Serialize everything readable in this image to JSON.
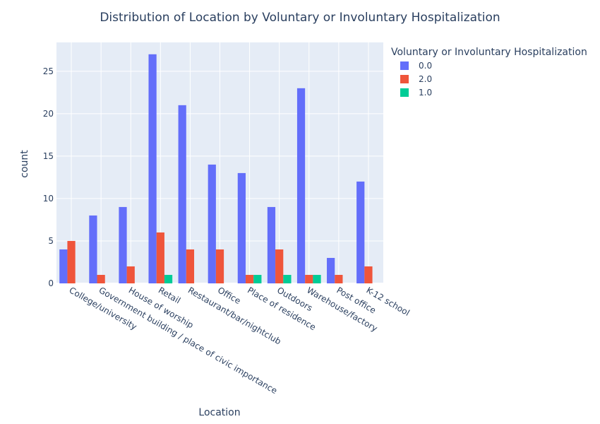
{
  "chart_data": {
    "type": "bar",
    "title": "Distribution of Location by Voluntary or Involuntary Hospitalization",
    "xlabel": "Location",
    "ylabel": "count",
    "ylim": [
      0,
      28.4
    ],
    "yticks": [
      0,
      5,
      10,
      15,
      20,
      25
    ],
    "grid": true,
    "legend_title": "Voluntary or Involuntary Hospitalization",
    "legend_position": "right",
    "categories": [
      "College/university",
      "Government building /  place of civic importance",
      "House of worship",
      "Retail",
      "Restaurant/bar/nightclub",
      "Office",
      "Place of residence",
      "Outdoors",
      "Warehouse/factory",
      "Post office",
      "K-12 school"
    ],
    "series": [
      {
        "name": "0.0",
        "color": "#636efa",
        "values": [
          4,
          8,
          9,
          27,
          21,
          14,
          13,
          9,
          23,
          3,
          12
        ]
      },
      {
        "name": "2.0",
        "color": "#ef553b",
        "values": [
          5,
          1,
          2,
          6,
          4,
          4,
          1,
          4,
          1,
          1,
          2
        ]
      },
      {
        "name": "1.0",
        "color": "#00cc96",
        "values": [
          0,
          0,
          0,
          1,
          0,
          0,
          1,
          1,
          1,
          0,
          0
        ]
      }
    ]
  }
}
